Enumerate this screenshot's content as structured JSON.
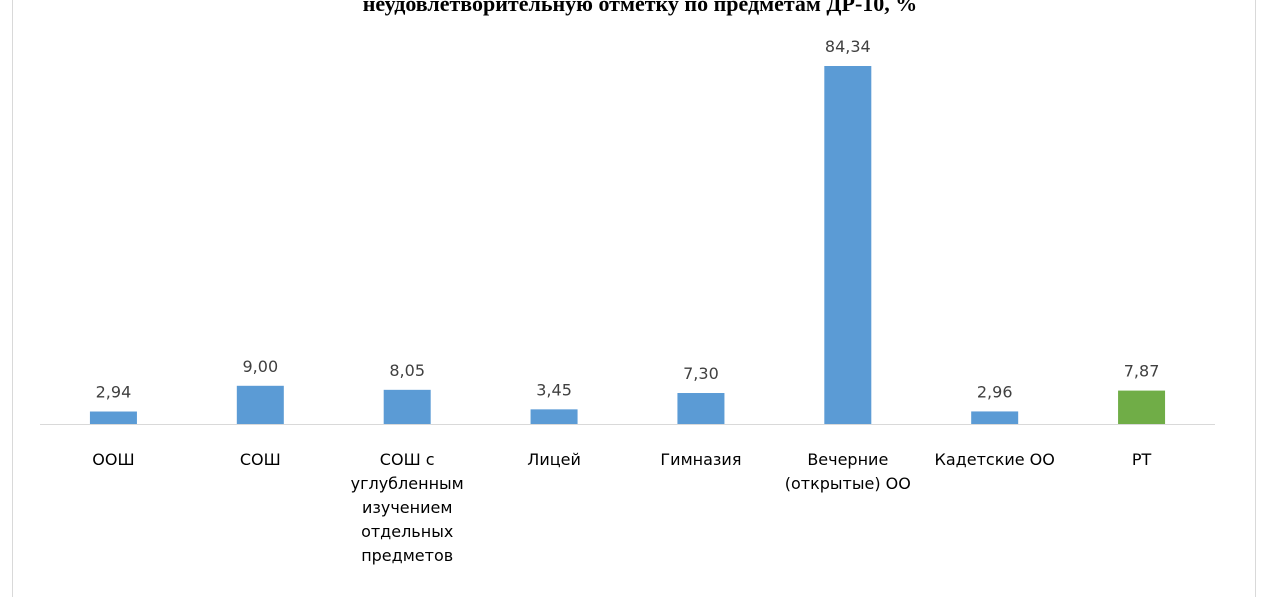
{
  "chart_data": {
    "type": "bar",
    "title": "неудовлетворительную отметку по предметам ДР-10, %",
    "categories": [
      "ООШ",
      "СОШ",
      "СОШ с углубленным изучением отдельных предметов",
      "Лицей",
      "Гимназия",
      "Вечерние (открытые) ОО",
      "Кадетские ОО",
      "РТ"
    ],
    "values": [
      2.94,
      9.0,
      8.05,
      3.45,
      7.3,
      84.34,
      2.96,
      7.87
    ],
    "value_labels": [
      "2,94",
      "9,00",
      "8,05",
      "3,45",
      "7,30",
      "84,34",
      "2,96",
      "7,87"
    ],
    "colors": [
      "#5b9bd5",
      "#5b9bd5",
      "#5b9bd5",
      "#5b9bd5",
      "#5b9bd5",
      "#5b9bd5",
      "#5b9bd5",
      "#70ad47"
    ]
  }
}
